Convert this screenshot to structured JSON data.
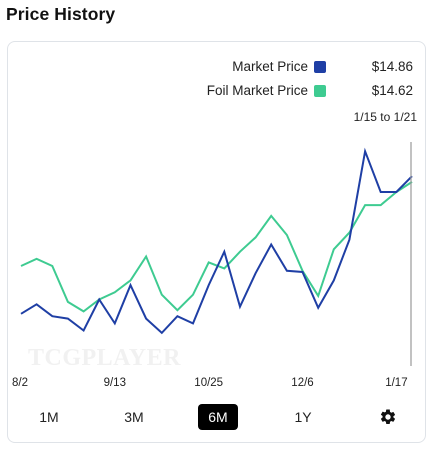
{
  "page_title": "Price History",
  "legend": [
    {
      "label": "Market Price",
      "value": "$14.86",
      "color": "#1f3fa5"
    },
    {
      "label": "Foil Market Price",
      "value": "$14.62",
      "color": "#3ecb91"
    }
  ],
  "range_label": "1/15 to 1/21",
  "watermark": "TCGPLAYER",
  "buttons": [
    "1M",
    "3M",
    "6M",
    "1Y"
  ],
  "active_button": "6M",
  "settings_icon": "gear-icon",
  "chart_data": {
    "type": "line",
    "x_ticks": [
      "8/2",
      "9/13",
      "10/25",
      "12/6",
      "1/17"
    ],
    "x_dates": [
      "8/2",
      "8/9",
      "8/16",
      "8/23",
      "8/30",
      "9/6",
      "9/13",
      "9/20",
      "9/27",
      "10/4",
      "10/11",
      "10/18",
      "10/25",
      "11/1",
      "11/8",
      "11/15",
      "11/22",
      "11/29",
      "12/6",
      "12/13",
      "12/20",
      "12/27",
      "1/3",
      "1/10",
      "1/17",
      "1/21"
    ],
    "y_range": [
      7.0,
      16.5
    ],
    "series": [
      {
        "name": "Market Price",
        "color": "#1f3fa5",
        "values": [
          9.1,
          9.5,
          9.0,
          8.9,
          8.4,
          9.7,
          8.7,
          10.3,
          8.9,
          8.3,
          9.0,
          8.7,
          10.3,
          11.7,
          9.4,
          10.8,
          12.0,
          10.9,
          10.85,
          9.35,
          10.5,
          12.2,
          15.9,
          14.2,
          14.2,
          14.86
        ],
        "last_label_value": "$14.86"
      },
      {
        "name": "Foil Market Price",
        "color": "#3ecb91",
        "values": [
          11.1,
          11.4,
          11.1,
          9.6,
          9.2,
          9.7,
          10.0,
          10.5,
          11.5,
          9.9,
          9.25,
          9.9,
          11.25,
          11.0,
          11.7,
          12.3,
          13.2,
          12.4,
          10.9,
          9.85,
          11.8,
          12.5,
          13.65,
          13.65,
          14.2,
          14.62
        ],
        "last_label_value": "$14.62"
      }
    ],
    "cursor_at": "1/21",
    "grid": false
  }
}
